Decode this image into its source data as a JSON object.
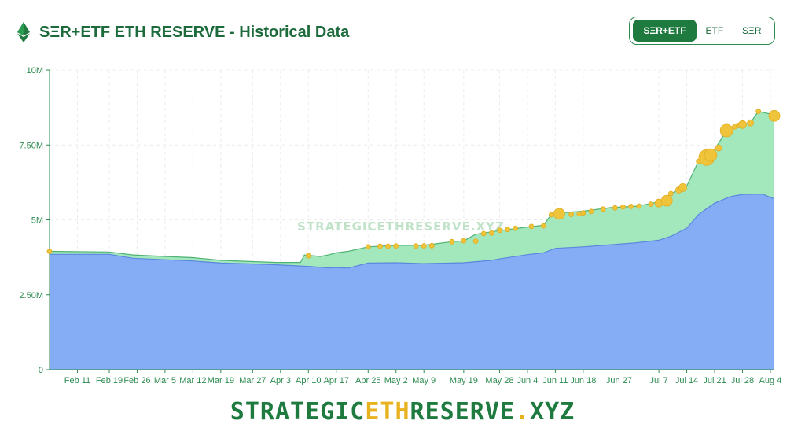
{
  "header": {
    "title": "SΞR+ETF ETH RESERVE - Historical Data",
    "icon": "ethereum-icon"
  },
  "toggle": {
    "options": [
      "SΞR+ETF",
      "ETF",
      "SΞR"
    ],
    "selected": "SΞR+ETF"
  },
  "watermark": "STRATEGICETHRESERVE.XYZ",
  "footer": {
    "part1": "STRATEGIC",
    "accent": "ETH",
    "part2": "RESERVE",
    "dot": ".",
    "part3": "XYZ"
  },
  "colors": {
    "brand_green": "#1e7a3e",
    "etf_area": "#85adf5",
    "total_area": "#a3e8bd",
    "markers": "#f0c43a",
    "accent_yellow": "#e8b21f"
  },
  "chart_data": {
    "type": "area",
    "stacked": true,
    "grid": true,
    "ylim": [
      0,
      10000000
    ],
    "yticks": [
      {
        "value": 0,
        "label": "0"
      },
      {
        "value": 2500000,
        "label": "2.50M"
      },
      {
        "value": 5000000,
        "label": "5M"
      },
      {
        "value": 7500000,
        "label": "7.50M"
      },
      {
        "value": 10000000,
        "label": "10M"
      }
    ],
    "x_start": "2025-02-04",
    "x_end": "2025-08-05",
    "xticks": [
      "Feb 11",
      "Feb 19",
      "Feb 26",
      "Mar 5",
      "Mar 12",
      "Mar 19",
      "Mar 27",
      "Apr 3",
      "Apr 10",
      "Apr 17",
      "Apr 25",
      "May 2",
      "May 9",
      "May 19",
      "May 28",
      "Jun 4",
      "Jun 11",
      "Jun 18",
      "Jun 27",
      "Jul 7",
      "Jul 14",
      "Jul 21",
      "Jul 28",
      "Aug 4"
    ],
    "series": [
      {
        "id": "etf",
        "points": [
          [
            "2025-02-04",
            3850000
          ],
          [
            "2025-02-19",
            3850000
          ],
          [
            "2025-02-25",
            3720000
          ],
          [
            "2025-03-05",
            3670000
          ],
          [
            "2025-03-12",
            3630000
          ],
          [
            "2025-03-19",
            3560000
          ],
          [
            "2025-03-27",
            3530000
          ],
          [
            "2025-04-02",
            3500000
          ],
          [
            "2025-04-10",
            3450000
          ],
          [
            "2025-04-15",
            3400000
          ],
          [
            "2025-04-17",
            3410000
          ],
          [
            "2025-04-20",
            3390000
          ],
          [
            "2025-04-25",
            3560000
          ],
          [
            "2025-05-02",
            3570000
          ],
          [
            "2025-05-09",
            3540000
          ],
          [
            "2025-05-19",
            3570000
          ],
          [
            "2025-05-26",
            3650000
          ],
          [
            "2025-05-29",
            3720000
          ],
          [
            "2025-06-04",
            3840000
          ],
          [
            "2025-06-08",
            3900000
          ],
          [
            "2025-06-11",
            4050000
          ],
          [
            "2025-06-18",
            4100000
          ],
          [
            "2025-06-25",
            4170000
          ],
          [
            "2025-07-01",
            4230000
          ],
          [
            "2025-07-07",
            4320000
          ],
          [
            "2025-07-10",
            4450000
          ],
          [
            "2025-07-14",
            4720000
          ],
          [
            "2025-07-17",
            5180000
          ],
          [
            "2025-07-21",
            5560000
          ],
          [
            "2025-07-25",
            5780000
          ],
          [
            "2025-07-28",
            5850000
          ],
          [
            "2025-08-02",
            5860000
          ],
          [
            "2025-08-05",
            5700000
          ]
        ]
      },
      {
        "id": "total",
        "points": [
          [
            "2025-02-04",
            3950000
          ],
          [
            "2025-02-19",
            3930000
          ],
          [
            "2025-02-25",
            3830000
          ],
          [
            "2025-03-05",
            3780000
          ],
          [
            "2025-03-12",
            3740000
          ],
          [
            "2025-03-19",
            3650000
          ],
          [
            "2025-03-27",
            3610000
          ],
          [
            "2025-04-02",
            3580000
          ],
          [
            "2025-04-08",
            3580000
          ],
          [
            "2025-04-09",
            3830000
          ],
          [
            "2025-04-13",
            3780000
          ],
          [
            "2025-04-15",
            3830000
          ],
          [
            "2025-04-17",
            3900000
          ],
          [
            "2025-04-20",
            3950000
          ],
          [
            "2025-04-25",
            4100000
          ],
          [
            "2025-05-02",
            4150000
          ],
          [
            "2025-05-09",
            4150000
          ],
          [
            "2025-05-16",
            4270000
          ],
          [
            "2025-05-19",
            4300000
          ],
          [
            "2025-05-22",
            4520000
          ],
          [
            "2025-05-28",
            4640000
          ],
          [
            "2025-06-04",
            4760000
          ],
          [
            "2025-06-08",
            4820000
          ],
          [
            "2025-06-10",
            5180000
          ],
          [
            "2025-06-11",
            5220000
          ],
          [
            "2025-06-18",
            5290000
          ],
          [
            "2025-06-25",
            5410000
          ],
          [
            "2025-07-01",
            5450000
          ],
          [
            "2025-07-04",
            5520000
          ],
          [
            "2025-07-07",
            5600000
          ],
          [
            "2025-07-09",
            5760000
          ],
          [
            "2025-07-11",
            5950000
          ],
          [
            "2025-07-14",
            6120000
          ],
          [
            "2025-07-17",
            6970000
          ],
          [
            "2025-07-19",
            7100000
          ],
          [
            "2025-07-21",
            7350000
          ],
          [
            "2025-07-24",
            7970000
          ],
          [
            "2025-07-27",
            8120000
          ],
          [
            "2025-07-28",
            8200000
          ],
          [
            "2025-07-30",
            8240000
          ],
          [
            "2025-08-01",
            8620000
          ],
          [
            "2025-08-05",
            8500000
          ]
        ]
      }
    ],
    "markers": [
      [
        "2025-02-04",
        3950000,
        3
      ],
      [
        "2025-04-10",
        3800000,
        3
      ],
      [
        "2025-04-25",
        4100000,
        3
      ],
      [
        "2025-04-28",
        4120000,
        3
      ],
      [
        "2025-04-30",
        4120000,
        3
      ],
      [
        "2025-05-02",
        4130000,
        3
      ],
      [
        "2025-05-07",
        4130000,
        3
      ],
      [
        "2025-05-09",
        4130000,
        3
      ],
      [
        "2025-05-11",
        4140000,
        3
      ],
      [
        "2025-05-16",
        4270000,
        3
      ],
      [
        "2025-05-19",
        4300000,
        3
      ],
      [
        "2025-05-22",
        4290000,
        3
      ],
      [
        "2025-05-24",
        4540000,
        3
      ],
      [
        "2025-05-26",
        4560000,
        3
      ],
      [
        "2025-05-28",
        4650000,
        3
      ],
      [
        "2025-05-30",
        4680000,
        3
      ],
      [
        "2025-06-01",
        4720000,
        3
      ],
      [
        "2025-06-05",
        4780000,
        3
      ],
      [
        "2025-06-08",
        4800000,
        3
      ],
      [
        "2025-06-10",
        5170000,
        3
      ],
      [
        "2025-06-12",
        5200000,
        7
      ],
      [
        "2025-06-15",
        5180000,
        3
      ],
      [
        "2025-06-17",
        5200000,
        3
      ],
      [
        "2025-06-18",
        5230000,
        3
      ],
      [
        "2025-06-20",
        5280000,
        3
      ],
      [
        "2025-06-23",
        5360000,
        3
      ],
      [
        "2025-06-26",
        5400000,
        3
      ],
      [
        "2025-06-28",
        5430000,
        3
      ],
      [
        "2025-06-30",
        5450000,
        3
      ],
      [
        "2025-07-02",
        5460000,
        3
      ],
      [
        "2025-07-05",
        5520000,
        3
      ],
      [
        "2025-07-07",
        5560000,
        5
      ],
      [
        "2025-07-09",
        5640000,
        7
      ],
      [
        "2025-07-10",
        5880000,
        3
      ],
      [
        "2025-07-12",
        6000000,
        4
      ],
      [
        "2025-07-13",
        6080000,
        5
      ],
      [
        "2025-07-17",
        6950000,
        3
      ],
      [
        "2025-07-19",
        7080000,
        10
      ],
      [
        "2025-07-20",
        7160000,
        8
      ],
      [
        "2025-07-22",
        7400000,
        4
      ],
      [
        "2025-07-24",
        7980000,
        8
      ],
      [
        "2025-07-26",
        8100000,
        3
      ],
      [
        "2025-07-27",
        8150000,
        3
      ],
      [
        "2025-07-28",
        8180000,
        5
      ],
      [
        "2025-07-30",
        8240000,
        4
      ],
      [
        "2025-08-01",
        8620000,
        3
      ],
      [
        "2025-08-05",
        8470000,
        7
      ]
    ]
  }
}
